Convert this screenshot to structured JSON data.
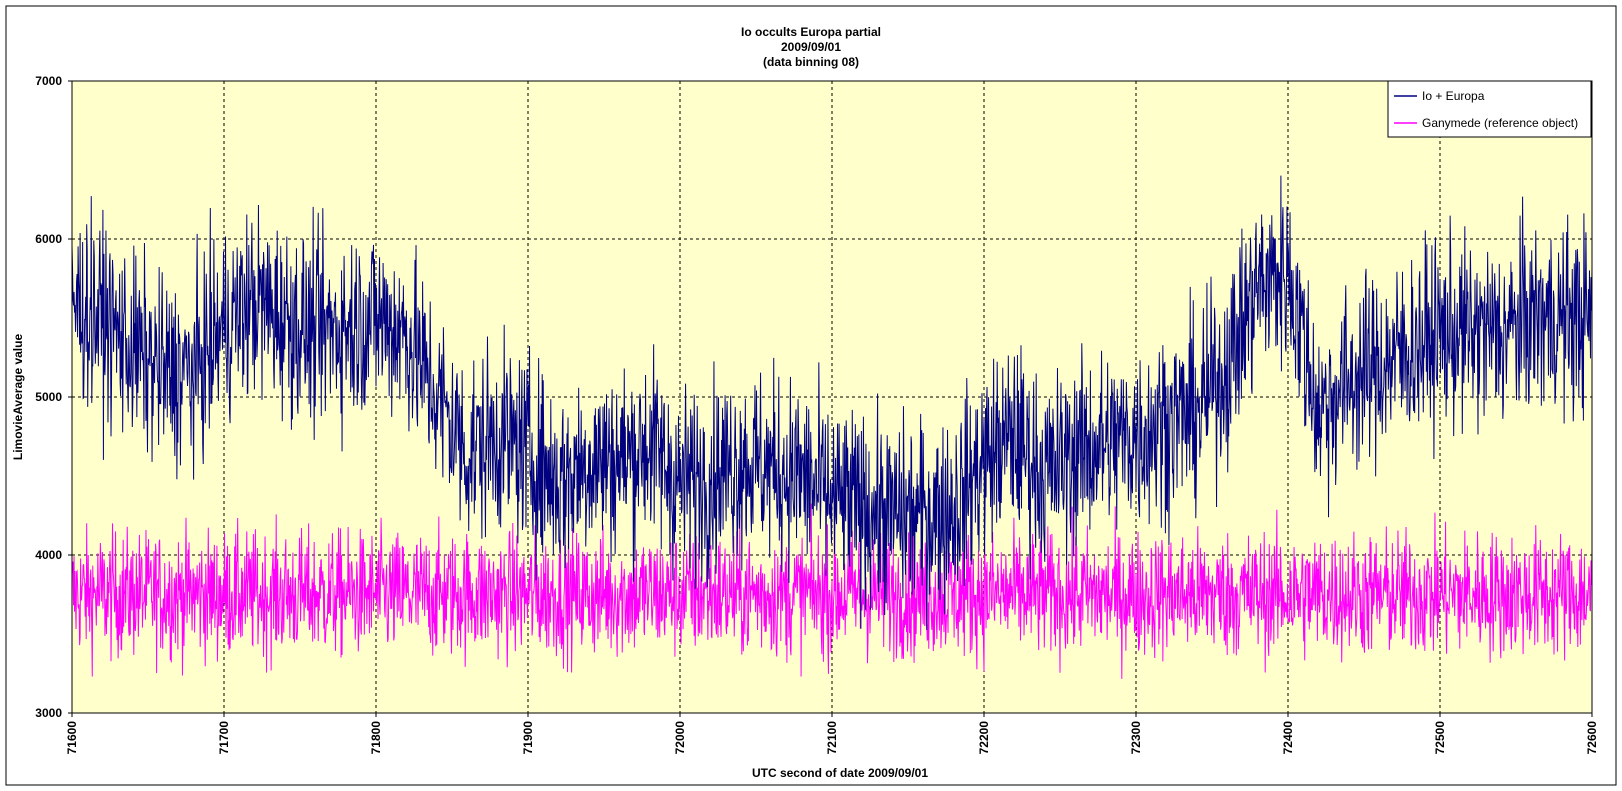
{
  "chart_data": {
    "type": "line",
    "title_lines": [
      "Io occults Europa partial",
      "2009/09/01",
      "(data binning 08)"
    ],
    "xlabel": "UTC second  of date 2009/09/01",
    "ylabel": "LimovieAverage value",
    "xlim": [
      71600,
      72600
    ],
    "ylim": [
      3000,
      7000
    ],
    "xticks": [
      "71600",
      "71700",
      "71800",
      "71900",
      "72000",
      "72100",
      "72200",
      "72300",
      "72400",
      "72500",
      "72600"
    ],
    "yticks": [
      "3000",
      "4000",
      "5000",
      "6000",
      "7000"
    ],
    "grid": true,
    "legend_position": "top-right",
    "plot_background": "#ffffcc",
    "series": [
      {
        "name": "Io  + Europa",
        "color": "#000080",
        "x": [
          71600,
          71620,
          71640,
          71660,
          71680,
          71700,
          71720,
          71740,
          71760,
          71780,
          71800,
          71820,
          71840,
          71860,
          71880,
          71900,
          71920,
          71940,
          71960,
          71980,
          72000,
          72020,
          72040,
          72060,
          72080,
          72100,
          72120,
          72140,
          72160,
          72180,
          72200,
          72220,
          72240,
          72260,
          72280,
          72300,
          72320,
          72340,
          72360,
          72380,
          72400,
          72420,
          72440,
          72460,
          72480,
          72500,
          72520,
          72540,
          72560,
          72580,
          72600
        ],
        "y": [
          5600,
          5500,
          5300,
          5150,
          5150,
          5450,
          5600,
          5500,
          5400,
          5450,
          5500,
          5400,
          5000,
          4650,
          4750,
          4650,
          4450,
          4600,
          4600,
          4700,
          4450,
          4500,
          4600,
          4550,
          4500,
          4350,
          4300,
          4250,
          4250,
          4300,
          4600,
          4750,
          4500,
          4650,
          4700,
          4750,
          4850,
          4900,
          5200,
          5700,
          5800,
          4900,
          5100,
          5200,
          5300,
          5400,
          5400,
          5400,
          5500,
          5500,
          5500
        ]
      },
      {
        "name": "Ganymede (reference object)",
        "color": "#ff00ff",
        "x": [
          71600,
          72600
        ],
        "y": [
          3750,
          3750
        ]
      }
    ]
  }
}
